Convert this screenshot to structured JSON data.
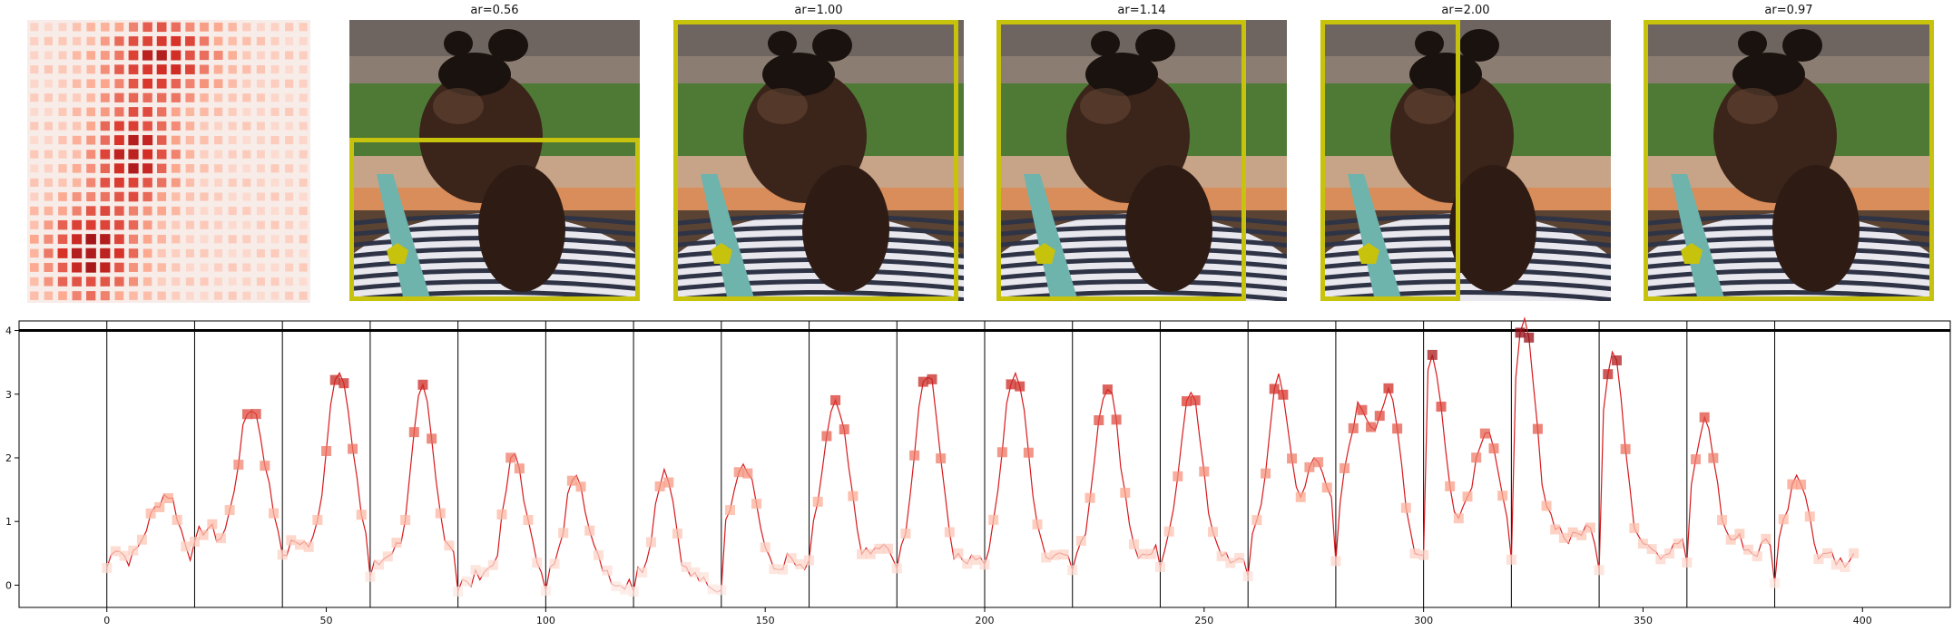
{
  "panels": [
    {
      "title": "ar=0.56",
      "crop": {
        "x0": 0.0,
        "y0": 0.42,
        "x1": 1.0,
        "y1": 1.0
      }
    },
    {
      "title": "ar=1.00",
      "crop": {
        "x0": 0.0,
        "y0": 0.0,
        "x1": 0.98,
        "y1": 1.0
      }
    },
    {
      "title": "ar=1.14",
      "crop": {
        "x0": 0.0,
        "y0": 0.0,
        "x1": 0.86,
        "y1": 1.0
      }
    },
    {
      "title": "ar=2.00",
      "crop": {
        "x0": 0.0,
        "y0": 0.0,
        "x1": 0.48,
        "y1": 1.0
      }
    },
    {
      "title": "ar=0.97",
      "crop": {
        "x0": 0.0,
        "y0": 0.0,
        "x1": 1.0,
        "y1": 1.0
      }
    }
  ],
  "colors": {
    "crop": "#c7c20c",
    "line": "#d7191c",
    "marker_dark": "#a50f15",
    "marker_light": "#fcbba1",
    "grass": "#4e7a36",
    "skin": "#3b241a"
  },
  "chart_data": {
    "type": "line",
    "xlim": [
      -20,
      420
    ],
    "ylim": [
      -0.35,
      4.15
    ],
    "xticks": [
      0,
      50,
      100,
      150,
      200,
      250,
      300,
      350,
      400
    ],
    "yticks": [
      0,
      1,
      2,
      3,
      4
    ],
    "hline": 4,
    "vlines": [
      0,
      20,
      40,
      60,
      80,
      100,
      120,
      140,
      160,
      180,
      200,
      220,
      240,
      260,
      280,
      300,
      320,
      340,
      360,
      380
    ],
    "segments": [
      {
        "peaks": [
          [
            13,
            1.5
          ]
        ],
        "base": 0.5
      },
      {
        "peaks": [
          [
            33,
            2.9
          ]
        ],
        "base": 0.8
      },
      {
        "peaks": [
          [
            53,
            3.5
          ]
        ],
        "base": 0.6
      },
      {
        "peaks": [
          [
            72,
            2.95
          ]
        ],
        "base": 0.4
      },
      {
        "peaks": [
          [
            93,
            1.95
          ]
        ],
        "base": 0.1
      },
      {
        "peaks": [
          [
            107,
            1.75
          ]
        ],
        "base": 0.1
      },
      {
        "peaks": [
          [
            127,
            1.75
          ]
        ],
        "base": 0.0
      },
      {
        "peaks": [
          [
            145,
            2.05
          ]
        ],
        "base": 0.3
      },
      {
        "peaks": [
          [
            166,
            2.9
          ]
        ],
        "base": 0.5
      },
      {
        "peaks": [
          [
            187,
            3.45
          ]
        ],
        "base": 0.4
      },
      {
        "peaks": [
          [
            207,
            3.45
          ]
        ],
        "base": 0.5
      },
      {
        "peaks": [
          [
            228,
            3.25
          ]
        ],
        "base": 0.5
      },
      {
        "peaks": [
          [
            247,
            3.05
          ]
        ],
        "base": 0.4
      },
      {
        "peaks": [
          [
            267,
            3.2
          ],
          [
            276,
            2.05
          ]
        ],
        "base": 0.5
      },
      {
        "peaks": [
          [
            285,
            2.8
          ],
          [
            292,
            3.0
          ]
        ],
        "base": 0.5
      },
      {
        "peaks": [
          [
            302,
            3.5
          ],
          [
            314,
            2.5
          ]
        ],
        "base": 0.8
      },
      {
        "peaks": [
          [
            323,
            4.0
          ]
        ],
        "base": 0.8
      },
      {
        "peaks": [
          [
            343,
            3.65
          ]
        ],
        "base": 0.6
      },
      {
        "peaks": [
          [
            364,
            2.5
          ]
        ],
        "base": 0.6
      },
      {
        "peaks": [
          [
            385,
            1.7
          ]
        ],
        "base": 0.4
      }
    ],
    "x_end": 398
  }
}
